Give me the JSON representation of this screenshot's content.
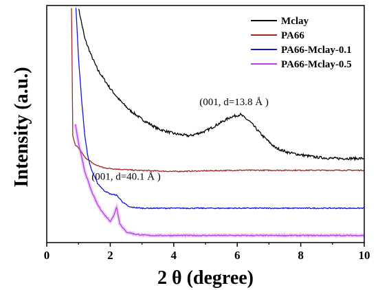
{
  "chart_data": {
    "type": "line",
    "xlabel": "2 θ (degree)",
    "ylabel": "Intensity (a.u.)",
    "xlim": [
      0,
      10
    ],
    "x_ticks": [
      0,
      2,
      4,
      6,
      8,
      10
    ],
    "y_tick_labels": false,
    "grid": false,
    "legend_position": "top-right",
    "series": [
      {
        "name": "Mclay",
        "color": "#000000",
        "x": [
          1.0,
          1.2,
          1.4,
          1.6,
          1.8,
          2.0,
          2.3,
          2.6,
          3.0,
          3.5,
          4.0,
          4.5,
          5.0,
          5.4,
          5.8,
          6.1,
          6.4,
          6.8,
          7.2,
          7.6,
          8.0,
          8.5,
          9.0,
          9.5,
          10.0
        ],
        "y": [
          99,
          86,
          79,
          73,
          69,
          65,
          60,
          56,
          52,
          48,
          46,
          45,
          47,
          50,
          53,
          54,
          51,
          45,
          40,
          38,
          37,
          36,
          35.5,
          35.5,
          35.5
        ]
      },
      {
        "name": "PA66",
        "color": "#9b2a1a",
        "x": [
          0.78,
          0.82,
          0.9,
          1.0,
          1.2,
          1.5,
          1.8,
          2.2,
          2.8,
          4.0,
          6.0,
          8.0,
          10.0
        ],
        "y": [
          99,
          45,
          41,
          40,
          36,
          33,
          31.5,
          31,
          30.5,
          30,
          30.5,
          30.5,
          30.5
        ]
      },
      {
        "name": "PA66-Mclay-0.1",
        "color": "#1515d0",
        "x": [
          0.92,
          1.0,
          1.1,
          1.2,
          1.3,
          1.4,
          1.6,
          1.8,
          2.0,
          2.2,
          2.4,
          2.6,
          3.0,
          4.0,
          6.0,
          8.0,
          10.0
        ],
        "y": [
          99,
          78,
          60,
          45,
          36,
          31,
          25,
          22,
          20.5,
          20,
          17,
          15,
          14.5,
          14.5,
          14.5,
          14.5,
          14.5
        ]
      },
      {
        "name": "PA66-Mclay-0.5",
        "color": "#b340e0",
        "x": [
          0.9,
          1.0,
          1.1,
          1.2,
          1.4,
          1.6,
          1.8,
          2.0,
          2.1,
          2.2,
          2.3,
          2.5,
          2.8,
          3.2,
          4.0,
          6.0,
          8.0,
          10.0
        ],
        "y": [
          50,
          42,
          36,
          30,
          22,
          16,
          12,
          9,
          11,
          15,
          8,
          4.5,
          3.5,
          3,
          3,
          3,
          3,
          3
        ]
      }
    ],
    "annotations": [
      {
        "text": "(001, d=13.8   Å )",
        "x": 5.9,
        "y": 58
      },
      {
        "text": "(001, d=40.1  Å )",
        "x": 2.5,
        "y": 26.5
      }
    ]
  }
}
